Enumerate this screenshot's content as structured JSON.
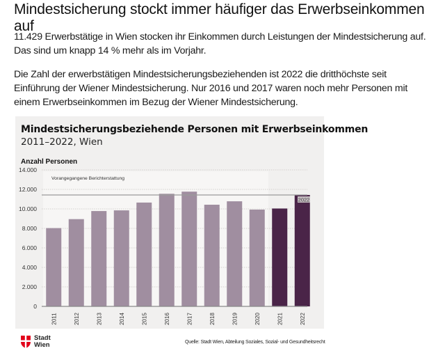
{
  "article": {
    "headline": "Mindestsicherung stockt immer häufiger das Erwerbseinkommen auf",
    "paragraph1": "11.429 Erwerbstätige in Wien stocken ihr Einkommen durch Leistungen der Mindestsicherung auf. Das sind um knapp 14 % mehr als im Vorjahr.",
    "paragraph2": "Die Zahl der erwerbstätigen Mindestsicherungsbeziehenden ist 2022 die dritthöchste seit Einführung der Wiener Mindestsicherung. Nur 2016 und 2017 waren noch mehr Personen mit einem Erwerbseinkommen im Bezug der Wiener Mindestsicherung."
  },
  "footer": {
    "logo_line1": "Stadt",
    "logo_line2": "Wien",
    "logo_icon": "vienna-coat-of-arms-icon",
    "source": "Quelle: Stadt Wien, Abteilung Soziales, Sozial- und Gesundheitsrecht"
  },
  "colors": {
    "card_background": "#f1f0ef",
    "previous_region": "#f7f6f5",
    "bar_previous": "#a08ea0",
    "bar_current": "#4a2448",
    "reference_line": "#9a9a9a",
    "logo_red": "#e2001a"
  },
  "chart_data": {
    "type": "bar",
    "title": "Mindestsicherungsbeziehende Personen mit Erwerbseinkommen",
    "subtitle": "2011–2022, Wien",
    "xlabel": "",
    "ylabel": "Anzahl Personen",
    "ylim": [
      0,
      14000
    ],
    "yticks": [
      0,
      2000,
      4000,
      6000,
      8000,
      10000,
      12000,
      14000
    ],
    "ytick_labels": [
      "0",
      "2.000",
      "4.000",
      "6.000",
      "8.000",
      "10.000",
      "12.000",
      "14.000"
    ],
    "grid": true,
    "categories": [
      "2011",
      "2012",
      "2013",
      "2014",
      "2015",
      "2016",
      "2017",
      "2018",
      "2019",
      "2020",
      "2021",
      "2022"
    ],
    "values": [
      8030,
      8950,
      9780,
      9850,
      10650,
      11550,
      11770,
      10430,
      10780,
      9930,
      10040,
      11429
    ],
    "highlight_from_index": 10,
    "region_annotation": "Vorangegangene Berichterstattung",
    "region_range": [
      "2011",
      "2020"
    ],
    "reference_line": {
      "value": 11429,
      "label": "2022"
    }
  }
}
